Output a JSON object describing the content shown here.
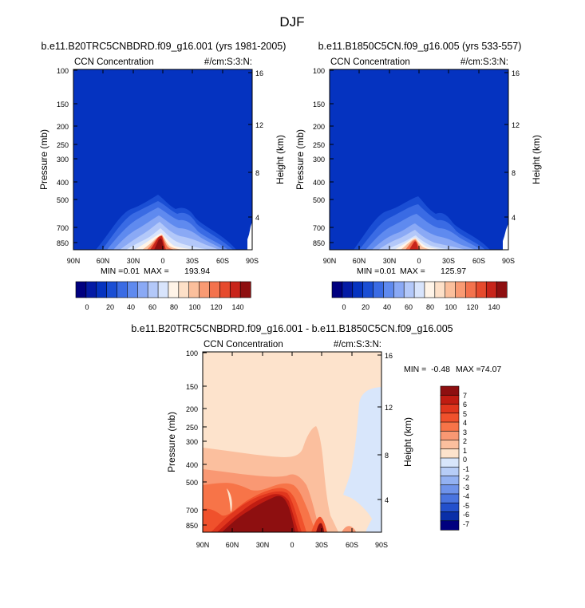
{
  "figure_title": "DJF",
  "colors": {
    "fill_background_blue": "#0533c0",
    "diff_background": "#fde3cc"
  },
  "chart_data": [
    {
      "type": "contour",
      "title": "b.e11.B20TRC5CNBDRD.f09_g16.001 (yrs 1981-2005)",
      "left_label": "CCN Concentration",
      "right_label": "#/cm:S:3:N:",
      "ylabel": "Pressure (mb)",
      "ylabel_right": "Height (km)",
      "x_ticks": [
        "90N",
        "60N",
        "30N",
        "0",
        "30S",
        "60S",
        "90S"
      ],
      "y_ticks": [
        "100",
        "150",
        "200",
        "250",
        "300",
        "400",
        "500",
        "700",
        "850"
      ],
      "y_right_ticks": [
        "16",
        "12",
        "8",
        "4"
      ],
      "min_label": "MIN =",
      "min": "0.01",
      "max_label": "MAX =",
      "max": "193.94",
      "colorbar": {
        "orientation": "horizontal",
        "tick_labels": [
          "0",
          "20",
          "40",
          "60",
          "80",
          "100",
          "120",
          "140"
        ],
        "colors": [
          "#00007f",
          "#041ba5",
          "#0533c0",
          "#1a4ed4",
          "#3a6be4",
          "#5f8aef",
          "#8aa9f5",
          "#b3c8f9",
          "#d8e4fc",
          "#fff4e8",
          "#fde0c8",
          "#fbbf9c",
          "#f99a73",
          "#f3724d",
          "#e64a2d",
          "#c8241a",
          "#8e0f10"
        ]
      }
    },
    {
      "type": "contour",
      "title": "b.e11.B1850C5CN.f09_g16.005 (yrs 533-557)",
      "left_label": "CCN Concentration",
      "right_label": "#/cm:S:3:N:",
      "ylabel": "Pressure (mb)",
      "ylabel_right": "Height (km)",
      "x_ticks": [
        "90N",
        "60N",
        "30N",
        "0",
        "30S",
        "60S",
        "90S"
      ],
      "y_ticks": [
        "100",
        "150",
        "200",
        "250",
        "300",
        "400",
        "500",
        "700",
        "850"
      ],
      "y_right_ticks": [
        "16",
        "12",
        "8",
        "4"
      ],
      "min_label": "MIN =",
      "min": "0.01",
      "max_label": "MAX =",
      "max": "125.97",
      "colorbar": {
        "orientation": "horizontal",
        "tick_labels": [
          "0",
          "20",
          "40",
          "60",
          "80",
          "100",
          "120",
          "140"
        ],
        "colors": [
          "#00007f",
          "#041ba5",
          "#0533c0",
          "#1a4ed4",
          "#3a6be4",
          "#5f8aef",
          "#8aa9f5",
          "#b3c8f9",
          "#d8e4fc",
          "#fff4e8",
          "#fde0c8",
          "#fbbf9c",
          "#f99a73",
          "#f3724d",
          "#e64a2d",
          "#c8241a",
          "#8e0f10"
        ]
      }
    },
    {
      "type": "contour",
      "title": "b.e11.B20TRC5CNBDRD.f09_g16.001 - b.e11.B1850C5CN.f09_g16.005",
      "left_label": "CCN Concentration",
      "right_label": "#/cm:S:3:N:",
      "ylabel": "Pressure (mb)",
      "ylabel_right": "Height (km)",
      "x_ticks": [
        "90N",
        "60N",
        "30N",
        "0",
        "30S",
        "60S",
        "90S"
      ],
      "y_ticks": [
        "100",
        "150",
        "200",
        "250",
        "300",
        "400",
        "500",
        "700",
        "850"
      ],
      "y_right_ticks": [
        "16",
        "12",
        "8",
        "4"
      ],
      "min_label": "MIN =",
      "min": "-0.48",
      "max_label": "MAX =",
      "max": "74.07",
      "colorbar": {
        "orientation": "vertical",
        "tick_labels": [
          "7",
          "6",
          "5",
          "4",
          "3",
          "2",
          "1",
          "0",
          "-1",
          "-2",
          "-3",
          "-4",
          "-5",
          "-6",
          "-7"
        ],
        "colors": [
          "#8e0f10",
          "#c01c12",
          "#e0361d",
          "#f0512c",
          "#f77448",
          "#f99873",
          "#fbbf9e",
          "#fde3cc",
          "#d8e6fb",
          "#b7cdf7",
          "#93b1f2",
          "#6f93ea",
          "#4a74df",
          "#2350cc",
          "#0a2fa8",
          "#00007f"
        ]
      }
    }
  ]
}
